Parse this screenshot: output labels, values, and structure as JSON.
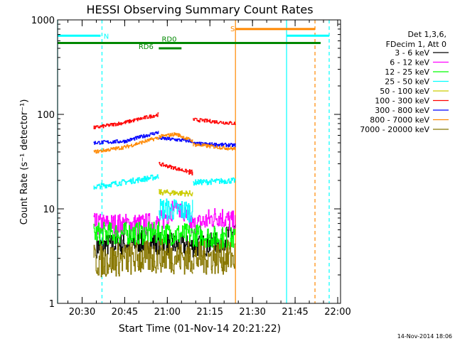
{
  "chart_data": {
    "type": "line",
    "title": "HESSI Observing Summary Count Rates",
    "xlabel": "Start Time (01-Nov-14 20:21:22)",
    "ylabel": "Count Rate (s⁻¹ detector⁻¹)",
    "yscale": "log",
    "ylim": [
      1,
      1000
    ],
    "xlim": [
      "20:21:22",
      "22:01:00"
    ],
    "x_tick_labels": [
      "20:30",
      "20:45",
      "21:00",
      "21:15",
      "21:30",
      "21:45",
      "22:00"
    ],
    "y_tick_labels": [
      "1",
      "10",
      "100",
      "1000"
    ],
    "legend_header": [
      "Det 1,3,6,",
      "FDecim 1, Att 0"
    ],
    "footer_timestamp": "14-Nov-2014 18:06",
    "series": [
      {
        "name": "3 - 6 keV",
        "color": "#000000",
        "segments": [
          {
            "x": [
              "20:35",
              "20:52",
              "21:08",
              "21:18",
              "21:24"
            ],
            "y": [
              4,
              4.5,
              4,
              4.3,
              6
            ]
          }
        ]
      },
      {
        "name": "6 - 12 keV",
        "color": "#ff00ff",
        "segments": [
          {
            "x": [
              "20:34",
              "20:50",
              "20:57",
              "21:03",
              "21:09",
              "21:18",
              "21:24"
            ],
            "y": [
              6.8,
              6.8,
              7,
              11,
              6.5,
              8.5,
              7
            ]
          }
        ]
      },
      {
        "name": "12 - 25 keV",
        "color": "#00ff00",
        "segments": [
          {
            "x": [
              "20:34",
              "20:57",
              "21:09",
              "21:24"
            ],
            "y": [
              5.5,
              5.5,
              5.3,
              4.8
            ]
          }
        ]
      },
      {
        "name": "25 - 50 keV",
        "color": "#00ffff",
        "segments": [
          {
            "x": [
              "20:34",
              "20:57"
            ],
            "y": [
              17,
              22
            ]
          },
          {
            "x": [
              "20:57",
              "21:09"
            ],
            "y": [
              10,
              9.5
            ]
          },
          {
            "x": [
              "21:09",
              "21:24"
            ],
            "y": [
              19,
              20
            ]
          }
        ]
      },
      {
        "name": "50 - 100 keV",
        "color": "#cccc00",
        "segments": [
          {
            "x": [
              "20:57",
              "21:09"
            ],
            "y": [
              15,
              14.5
            ]
          }
        ]
      },
      {
        "name": "100 - 300 keV",
        "color": "#ff0000",
        "segments": [
          {
            "x": [
              "20:34",
              "20:45",
              "20:57"
            ],
            "y": [
              72,
              82,
              100
            ]
          },
          {
            "x": [
              "20:57",
              "21:09"
            ],
            "y": [
              30,
              24
            ]
          },
          {
            "x": [
              "21:09",
              "21:24"
            ],
            "y": [
              88,
              80
            ]
          }
        ]
      },
      {
        "name": "300 - 800 keV",
        "color": "#0000ff",
        "segments": [
          {
            "x": [
              "20:34",
              "20:45",
              "20:57"
            ],
            "y": [
              50,
              52,
              65
            ]
          },
          {
            "x": [
              "20:57",
              "21:09"
            ],
            "y": [
              56,
              52
            ]
          },
          {
            "x": [
              "21:09",
              "21:24"
            ],
            "y": [
              49,
              47
            ]
          }
        ]
      },
      {
        "name": "800 - 7000 keV",
        "color": "#ff8800",
        "segments": [
          {
            "x": [
              "20:34",
              "20:45",
              "20:57"
            ],
            "y": [
              40,
              45,
              57
            ]
          },
          {
            "x": [
              "20:57",
              "21:03",
              "21:09"
            ],
            "y": [
              58,
              62,
              52
            ]
          },
          {
            "x": [
              "21:09",
              "21:24"
            ],
            "y": [
              48,
              43
            ]
          }
        ]
      },
      {
        "name": "7000 - 20000 keV",
        "color": "#887700",
        "segments": [
          {
            "x": [
              "20:34",
              "20:57"
            ],
            "y": [
              2.8,
              3.1
            ]
          },
          {
            "x": [
              "20:57",
              "21:09"
            ],
            "y": [
              3.2,
              3.0
            ]
          },
          {
            "x": [
              "21:09",
              "21:24"
            ],
            "y": [
              3.0,
              3.1
            ]
          }
        ]
      }
    ],
    "state_bars": [
      {
        "label": "N",
        "color": "#00ffff",
        "value": 680,
        "x_start": "20:21:22",
        "x_end": "20:35:30",
        "dash_to": "20:37:00"
      },
      {
        "label": "",
        "color": "#00ffff",
        "value": 680,
        "x_start": "21:42",
        "x_end": "21:57",
        "dash_to": ""
      },
      {
        "label": "S",
        "color": "#ff8800",
        "value": 800,
        "x_start": "21:24",
        "x_end": "21:52",
        "dash_to": ""
      },
      {
        "label": "RD0",
        "color": "#008800",
        "value": 570,
        "x_start": "20:21:22",
        "x_end": "21:54",
        "dash_to": ""
      },
      {
        "label": "RD6",
        "color": "#008800",
        "value": 500,
        "x_start": "20:57",
        "x_end": "21:05",
        "dash_to": ""
      }
    ],
    "vertical_markers": [
      {
        "x": "20:21:22",
        "color": "#00ffff",
        "style": "solid"
      },
      {
        "x": "20:37:00",
        "color": "#00ffff",
        "style": "dashed"
      },
      {
        "x": "21:24:00",
        "color": "#ff8800",
        "style": "solid"
      },
      {
        "x": "21:42:00",
        "color": "#00ffff",
        "style": "solid"
      },
      {
        "x": "21:52:00",
        "color": "#ff8800",
        "style": "dashed"
      },
      {
        "x": "21:57:00",
        "color": "#00ffff",
        "style": "dashed"
      }
    ]
  }
}
